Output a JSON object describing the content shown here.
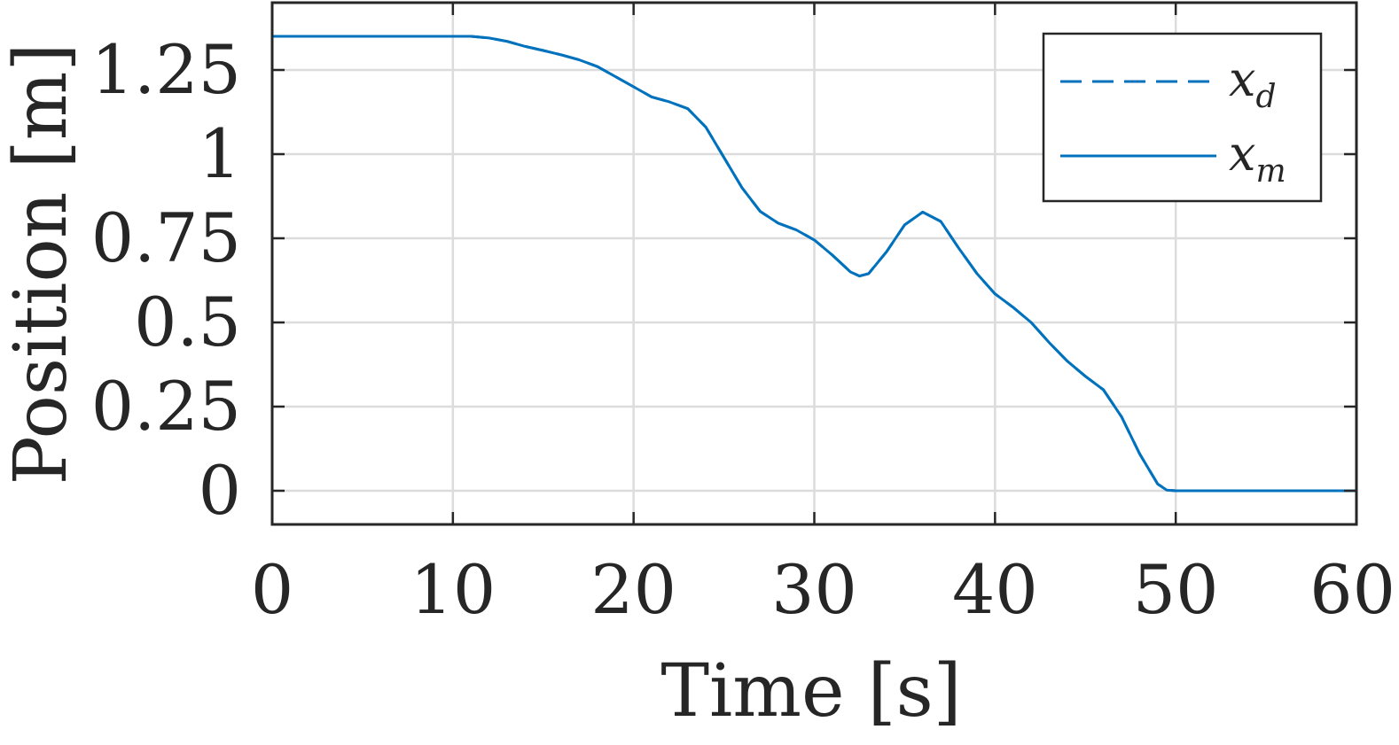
{
  "chart_data": {
    "type": "line",
    "title": "",
    "xlabel": "Time [s]",
    "ylabel": "Position [m]",
    "xlim": [
      0,
      60
    ],
    "ylim": [
      -0.1,
      1.45
    ],
    "xticks": [
      0,
      10,
      20,
      30,
      40,
      50,
      60
    ],
    "xtick_labels": [
      "0",
      "10",
      "20",
      "30",
      "40",
      "50",
      "60"
    ],
    "yticks": [
      0,
      0.25,
      0.5,
      0.75,
      1,
      1.25
    ],
    "ytick_labels": [
      "0",
      "0.25",
      "0.5",
      "0.75",
      "1",
      "1.25"
    ],
    "grid": true,
    "legend_position": "top-right",
    "colors": {
      "series": "#0072BD",
      "grid": "#dcdcdc",
      "axis": "#262626"
    },
    "series": [
      {
        "name": "x",
        "subscript": "d",
        "style": "dashed",
        "x": [
          0,
          5,
          10,
          11,
          12,
          13,
          14,
          15,
          16,
          17,
          18,
          19,
          20,
          21,
          22,
          23,
          24,
          25,
          26,
          27,
          28,
          29,
          30,
          31,
          32,
          32.5,
          33,
          34,
          35,
          36,
          37,
          38,
          39,
          40,
          41,
          42,
          43,
          44,
          45,
          46,
          47,
          48,
          49,
          49.5,
          50,
          55,
          60
        ],
        "y": [
          1.35,
          1.35,
          1.35,
          1.35,
          1.345,
          1.335,
          1.32,
          1.308,
          1.295,
          1.28,
          1.26,
          1.23,
          1.2,
          1.17,
          1.155,
          1.135,
          1.08,
          0.99,
          0.9,
          0.83,
          0.795,
          0.775,
          0.745,
          0.7,
          0.65,
          0.638,
          0.645,
          0.71,
          0.79,
          0.828,
          0.8,
          0.72,
          0.645,
          0.585,
          0.545,
          0.5,
          0.44,
          0.385,
          0.34,
          0.3,
          0.22,
          0.11,
          0.02,
          0.002,
          0,
          0,
          0
        ]
      },
      {
        "name": "x",
        "subscript": "m",
        "style": "solid",
        "x": [
          0,
          5,
          10,
          11,
          12,
          13,
          14,
          15,
          16,
          17,
          18,
          19,
          20,
          21,
          22,
          23,
          24,
          25,
          26,
          27,
          28,
          29,
          30,
          31,
          32,
          32.5,
          33,
          34,
          35,
          36,
          37,
          38,
          39,
          40,
          41,
          42,
          43,
          44,
          45,
          46,
          47,
          48,
          49,
          49.5,
          50,
          55,
          60
        ],
        "y": [
          1.35,
          1.35,
          1.35,
          1.35,
          1.345,
          1.335,
          1.32,
          1.308,
          1.295,
          1.28,
          1.26,
          1.23,
          1.2,
          1.17,
          1.155,
          1.135,
          1.08,
          0.99,
          0.9,
          0.83,
          0.795,
          0.775,
          0.745,
          0.7,
          0.65,
          0.638,
          0.645,
          0.71,
          0.79,
          0.828,
          0.8,
          0.72,
          0.645,
          0.585,
          0.545,
          0.5,
          0.44,
          0.385,
          0.34,
          0.3,
          0.22,
          0.11,
          0.02,
          0.002,
          0,
          0,
          0
        ]
      }
    ]
  }
}
